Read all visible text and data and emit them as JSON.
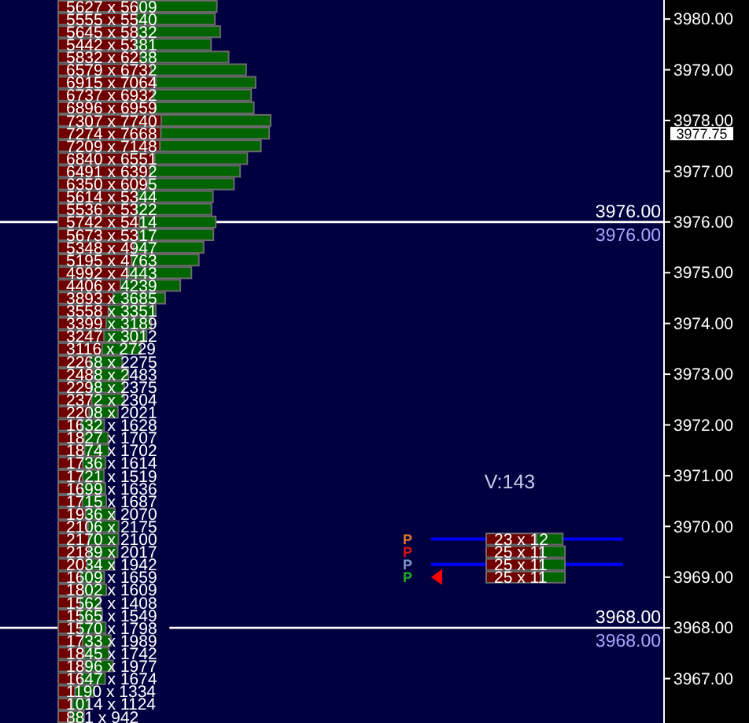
{
  "chart_data": [
    {
      "type": "bar",
      "orientation": "horizontal",
      "stacked": true,
      "tick_labels": "y",
      "x": [
        3980.25,
        3980,
        3979.75,
        3979.5,
        3979.25,
        3979,
        3978.75,
        3978.5,
        3978.25,
        3978,
        3977.75,
        3977.5,
        3977.25,
        3977,
        3976.75,
        3976.5,
        3976.25,
        3976,
        3975.75,
        3975.5,
        3975.25,
        3975,
        3974.75,
        3974.5,
        3974.25,
        3974,
        3973.75,
        3973.5,
        3973.25,
        3973,
        3972.75,
        3972.5,
        3972.25,
        3972,
        3971.75,
        3971.5,
        3971.25,
        3971,
        3970.75,
        3970.5,
        3970.25,
        3970,
        3969.75,
        3969.5,
        3969.25,
        3969,
        3968.75,
        3968.5,
        3968.25,
        3968,
        3967.75,
        3967.5,
        3967.25,
        3967,
        3966.75,
        3966.5,
        3966.25
      ],
      "series": [
        {
          "color": "#700000",
          "values": [
            5627,
            5555,
            5645,
            5442,
            5832,
            6579,
            6915,
            6737,
            6896,
            7307,
            7274,
            7209,
            6840,
            6491,
            6350,
            5614,
            5536,
            5742,
            5673,
            5348,
            5195,
            4992,
            4406,
            3893,
            3558,
            3399,
            3247,
            3116,
            2268,
            2488,
            2298,
            2372,
            2208,
            1632,
            1827,
            1874,
            1736,
            1721,
            1699,
            1715,
            1936,
            2106,
            2170,
            2189,
            2034,
            1609,
            1802,
            1562,
            1565,
            1570,
            1733,
            1845,
            1896,
            1647,
            1190,
            1014,
            881
          ],
          "value_labels": [
            "5627 x 5609",
            "5555 x 5540",
            "5645 x 5832",
            "5442 x 5381",
            "5832 x 6238",
            "6579 x 6732",
            "6915 x 7064",
            "6737 x 6932",
            "6896 x 6959",
            "7307 x 7740",
            "7274 x 7668",
            "7209 x 7148",
            "6840 x 6551",
            "6491 x 6392",
            "6350 x 6095",
            "5614 x 5344",
            "5536 x 5322",
            "5742 x 5414",
            "5673 x 5317",
            "5348 x 4947",
            "5195 x 4763",
            "4992 x 4443",
            "4406 x 4239",
            "3893 x 3685",
            "3558 x 3351",
            "3399 x 3189",
            "3247 x 3012",
            "3116 x 2729",
            "2268 x 2275",
            "2488 x 2483",
            "2298 x 2375",
            "2372 x 2304",
            "2208 x 2021",
            "1632 x 1628",
            "1827 x 1707",
            "1874 x 1702",
            "1736 x 1614",
            "1721 x 1519",
            "1699 x 1636",
            "1715 x 1687",
            "1936 x 2070",
            "2106 x 2175",
            "2170 x 2100",
            "2189 x 2017",
            "2034 x 1942",
            "1609 x 1659",
            "1802 x 1609",
            "1562 x 1408",
            "1565 x 1549",
            "1570 x 1798",
            "1733 x 1989",
            "1845 x 1742",
            "1896 x 1977",
            "1647 x 1674",
            "1190 x 1334",
            "1014 x 1124",
            "881 x 942"
          ]
        },
        {
          "color": "#006400",
          "values": [
            5609,
            5540,
            5832,
            5381,
            6238,
            6732,
            7064,
            6932,
            6959,
            7740,
            7668,
            7148,
            6551,
            6392,
            6095,
            5344,
            5322,
            5414,
            5317,
            4947,
            4763,
            4443,
            4239,
            3685,
            3351,
            3189,
            3012,
            2729,
            2275,
            2483,
            2375,
            2304,
            2021,
            1628,
            1707,
            1702,
            1614,
            1519,
            1636,
            1687,
            2070,
            2175,
            2100,
            2017,
            1942,
            1659,
            1609,
            1408,
            1549,
            1798,
            1989,
            1742,
            1977,
            1674,
            1334,
            1124,
            942
          ]
        }
      ],
      "ylim": [
        3966.125,
        3980.375
      ],
      "yticks": [
        {
          "value": 3967,
          "label": "3967.00"
        },
        {
          "value": 3968,
          "label": "3968.00"
        },
        {
          "value": 3969,
          "label": "3969.00"
        },
        {
          "value": 3970,
          "label": "3970.00"
        },
        {
          "value": 3971,
          "label": "3971.00"
        },
        {
          "value": 3972,
          "label": "3972.00"
        },
        {
          "value": 3973,
          "label": "3973.00"
        },
        {
          "value": 3974,
          "label": "3974.00"
        },
        {
          "value": 3975,
          "label": "3975.00"
        },
        {
          "value": 3976,
          "label": "3976.00"
        },
        {
          "value": 3977,
          "label": "3977.00"
        },
        {
          "value": 3977.75,
          "label": "3977.75"
        },
        {
          "value": 3978,
          "label": "3978.00"
        },
        {
          "value": 3979,
          "label": "3979.00"
        },
        {
          "value": 3980,
          "label": "3980.00"
        }
      ],
      "ref_lines": [
        {
          "axis": "y",
          "value": 3976,
          "label": "3976.00",
          "color": "#ffffff"
        },
        {
          "axis": "y",
          "value": 3968,
          "label": "3968.00",
          "color": "#ffffff"
        }
      ],
      "annotations": [
        {
          "text": "3976.00",
          "y": 3976
        },
        {
          "text": "3968.00",
          "y": 3968
        }
      ]
    },
    {
      "type": "bar",
      "orientation": "horizontal",
      "stacked": true,
      "tick_labels": false,
      "categories": [
        null,
        null,
        null,
        null
      ],
      "series": [
        {
          "color": "#700000",
          "values": [
            23,
            25,
            25,
            25
          ],
          "value_labels": [
            "23 x 12",
            "25 x 11",
            "25 x 11",
            "25 x 11"
          ]
        },
        {
          "color": "#006400",
          "values": [
            12,
            11,
            11,
            11
          ]
        }
      ],
      "annotations": [
        "V:143",
        "P",
        "P",
        "P",
        "P"
      ]
    }
  ]
}
